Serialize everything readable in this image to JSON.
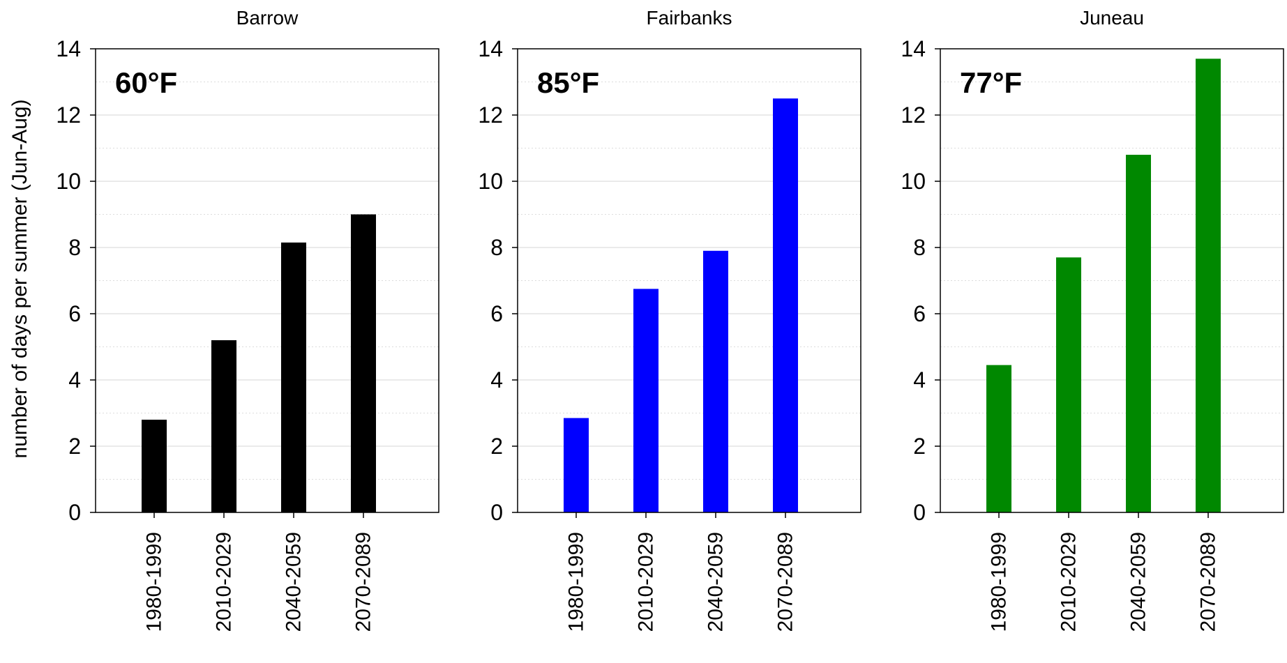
{
  "figure": {
    "ylabel": "number of days per summer (Jun-Aug)"
  },
  "chart_data": [
    {
      "type": "bar",
      "title": "Barrow",
      "annotation": "60°F",
      "categories": [
        "1980-1999",
        "2010-2029",
        "2040-2059",
        "2070-2089"
      ],
      "values": [
        2.8,
        5.2,
        8.15,
        9.0
      ],
      "bar_color": "#000000",
      "ylim": [
        0,
        14
      ],
      "yticks": [
        "0",
        "2",
        "4",
        "6",
        "8",
        "10",
        "12",
        "14"
      ],
      "grid": true
    },
    {
      "type": "bar",
      "title": "Fairbanks",
      "annotation": "85°F",
      "categories": [
        "1980-1999",
        "2010-2029",
        "2040-2059",
        "2070-2089"
      ],
      "values": [
        2.85,
        6.75,
        7.9,
        12.5
      ],
      "bar_color": "#0000ff",
      "ylim": [
        0,
        14
      ],
      "yticks": [
        "0",
        "2",
        "4",
        "6",
        "8",
        "10",
        "12",
        "14"
      ],
      "grid": true
    },
    {
      "type": "bar",
      "title": "Juneau",
      "annotation": "77°F",
      "categories": [
        "1980-1999",
        "2010-2029",
        "2040-2059",
        "2070-2089"
      ],
      "values": [
        4.45,
        7.7,
        10.8,
        13.7
      ],
      "bar_color": "#008800",
      "ylim": [
        0,
        14
      ],
      "yticks": [
        "0",
        "2",
        "4",
        "6",
        "8",
        "10",
        "12",
        "14"
      ],
      "grid": true
    }
  ]
}
